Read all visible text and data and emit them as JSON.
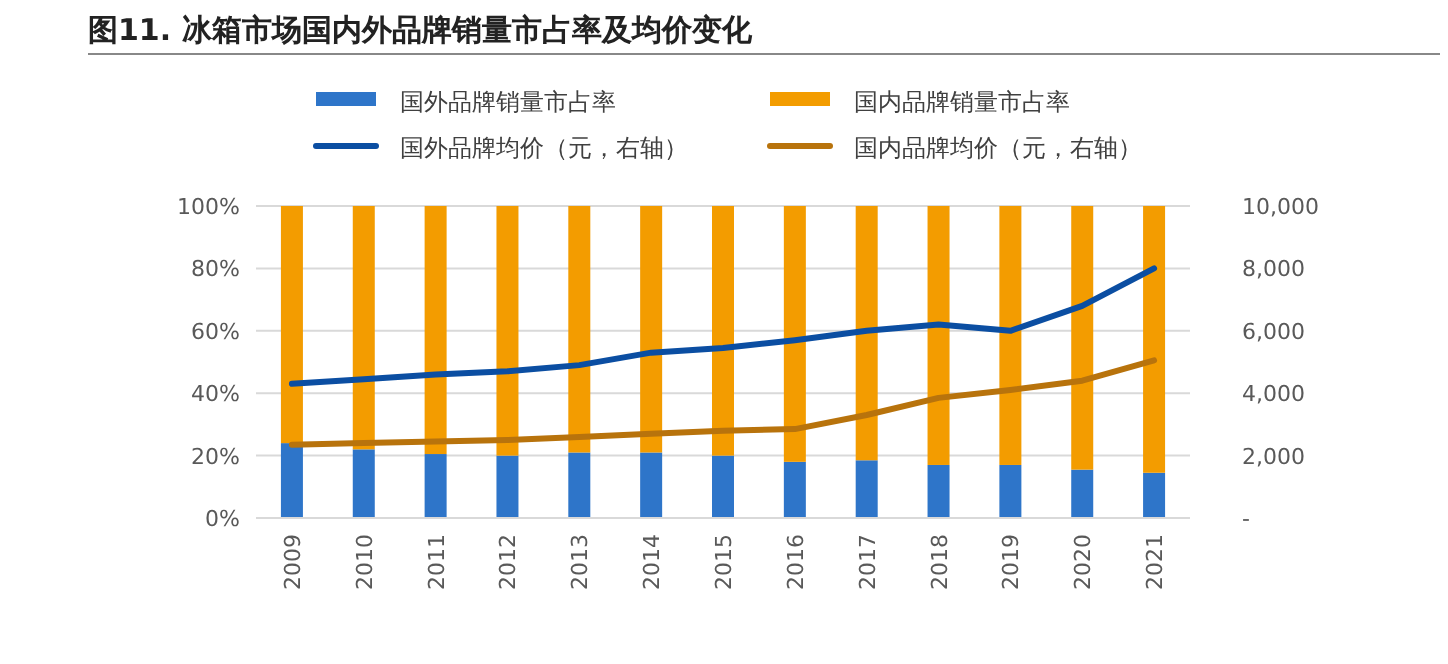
{
  "chart_data": {
    "type": "bar",
    "title": "图11. 冰箱市场国内外品牌销量市占率及均价变化",
    "stacked": true,
    "grid": "y",
    "legend": "top",
    "categories": [
      "2009",
      "2010",
      "2011",
      "2012",
      "2013",
      "2014",
      "2015",
      "2016",
      "2017",
      "2018",
      "2019",
      "2020",
      "2021"
    ],
    "ylim": [
      0,
      100
    ],
    "yticks": [
      {
        "value": 0,
        "label": "0%"
      },
      {
        "value": 20,
        "label": "20%"
      },
      {
        "value": 40,
        "label": "40%"
      },
      {
        "value": 60,
        "label": "60%"
      },
      {
        "value": 80,
        "label": "80%"
      },
      {
        "value": 100,
        "label": "100%"
      }
    ],
    "y2lim": [
      0,
      10000
    ],
    "y2ticks": [
      {
        "value": 0,
        "label": "-"
      },
      {
        "value": 2000,
        "label": "2,000"
      },
      {
        "value": 4000,
        "label": "4,000"
      },
      {
        "value": 6000,
        "label": "6,000"
      },
      {
        "value": 8000,
        "label": "8,000"
      },
      {
        "value": 10000,
        "label": "10,000"
      }
    ],
    "series": [
      {
        "name": "国外品牌销量市占率",
        "type": "bar",
        "color": "#2e75c9",
        "values": [
          24,
          22,
          20.5,
          20,
          21,
          21,
          20,
          18,
          18.5,
          17,
          17,
          15.5,
          14.5
        ]
      },
      {
        "name": "国内品牌销量市占率",
        "type": "bar",
        "color": "#f39c00",
        "values": [
          76,
          78,
          79.5,
          80,
          79,
          79,
          80,
          82,
          81.5,
          83,
          83,
          84.5,
          85.5
        ]
      },
      {
        "name": "国外品牌均价（元，右轴）",
        "type": "line",
        "axis": "y2",
        "color": "#0b4ea2",
        "values": [
          4300,
          4450,
          4600,
          4700,
          4900,
          5300,
          5450,
          5700,
          6000,
          6200,
          6000,
          6800,
          8000
        ]
      },
      {
        "name": "国内品牌均价（元，右轴）",
        "type": "line",
        "axis": "y2",
        "color": "#b8730c",
        "values": [
          2350,
          2400,
          2450,
          2500,
          2600,
          2700,
          2800,
          2850,
          3300,
          3850,
          4100,
          4400,
          5050
        ]
      }
    ]
  }
}
